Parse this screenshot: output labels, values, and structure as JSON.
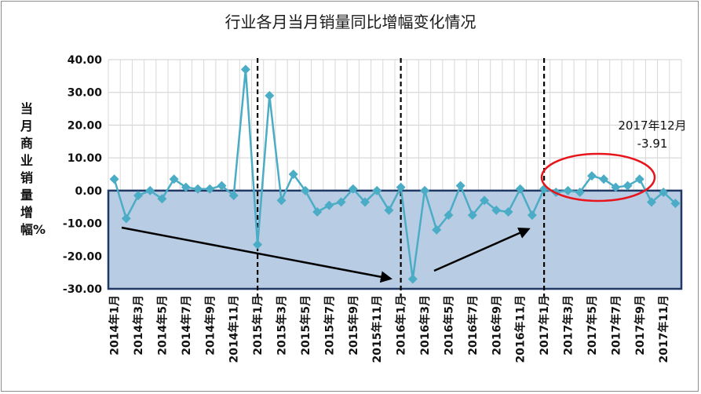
{
  "chart_data": {
    "type": "line",
    "title": "行业各月当月销量同比增幅变化情况",
    "ylabel": "当月商业销量增幅%",
    "xlabel": "",
    "ylim": [
      -30,
      40
    ],
    "yticks": [
      "40.00",
      "30.00",
      "20.00",
      "10.00",
      "0.00",
      "-10.00",
      "-20.00",
      "-30.00"
    ],
    "ytick_values": [
      40,
      30,
      20,
      10,
      0,
      -10,
      -20,
      -30
    ],
    "grid": true,
    "x": [
      "2014年1月",
      "2014年2月",
      "2014年3月",
      "2014年4月",
      "2014年5月",
      "2014年6月",
      "2014年7月",
      "2014年8月",
      "2014年9月",
      "2014年10月",
      "2014年11月",
      "2014年12月",
      "2015年1月",
      "2015年2月",
      "2015年3月",
      "2015年4月",
      "2015年5月",
      "2015年6月",
      "2015年7月",
      "2015年8月",
      "2015年9月",
      "2015年10月",
      "2015年11月",
      "2015年12月",
      "2016年1月",
      "2016年2月",
      "2016年3月",
      "2016年4月",
      "2016年5月",
      "2016年6月",
      "2016年7月",
      "2016年8月",
      "2016年9月",
      "2016年10月",
      "2016年11月",
      "2016年12月",
      "2017年1月",
      "2017年2月",
      "2017年3月",
      "2017年4月",
      "2017年5月",
      "2017年6月",
      "2017年7月",
      "2017年8月",
      "2017年9月",
      "2017年10月",
      "2017年11月",
      "2017年12月"
    ],
    "xtick_labels": [
      "2014年1月",
      "2014年3月",
      "2014年5月",
      "2014年7月",
      "2014年9月",
      "2014年11月",
      "2015年1月",
      "2015年3月",
      "2015年5月",
      "2015年7月",
      "2015年9月",
      "2015年11月",
      "2016年1月",
      "2016年3月",
      "2016年5月",
      "2016年7月",
      "2016年9月",
      "2016年11月",
      "2017年1月",
      "2017年3月",
      "2017年5月",
      "2017年7月",
      "2017年9月",
      "2017年11月"
    ],
    "series": [
      {
        "values": [
          3.5,
          -8.5,
          -1.5,
          0.0,
          -2.5,
          3.5,
          1.0,
          0.5,
          0.5,
          1.5,
          -1.5,
          37.0,
          -16.5,
          29.0,
          -3.0,
          5.0,
          0.0,
          -6.5,
          -4.5,
          -3.5,
          0.5,
          -3.5,
          0.0,
          -6.0,
          1.0,
          -27.0,
          0.0,
          -12.0,
          -7.5,
          1.5,
          -7.5,
          -3.0,
          -6.0,
          -6.5,
          0.5,
          -7.5,
          0.5,
          -0.5,
          0.0,
          -0.5,
          4.5,
          3.5,
          1.0,
          1.5,
          3.5,
          -3.5,
          -0.5,
          -3.91
        ]
      }
    ],
    "colors": {
      "line": "#4bacc6",
      "marker": "#4bacc6",
      "negative_fill": "#b8cce4",
      "negative_border": "#1f3864",
      "circle": "#e8141b",
      "divider": "#000000"
    },
    "annotation": {
      "text_line1": "2017年12月",
      "text_line2": "-3.91"
    }
  }
}
